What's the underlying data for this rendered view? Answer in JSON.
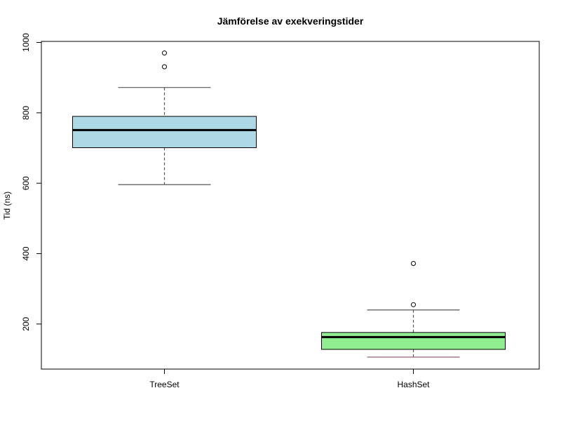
{
  "chart_data": {
    "type": "boxplot",
    "title": "Jämförelse av exekveringstider",
    "xlabel": "",
    "ylabel": "Tid (ns)",
    "ylim": [
      72,
      1003
    ],
    "yticks": [
      200,
      400,
      600,
      800,
      1000
    ],
    "grid": false,
    "categories": [
      "TreeSet",
      "HashSet"
    ],
    "boxes": [
      {
        "category": "TreeSet",
        "whisker_low": 596,
        "q1": 701,
        "median": 751,
        "q3": 790,
        "whisker_high": 872,
        "outliers": [
          931,
          970
        ],
        "fill": "#ADD8E6",
        "whisker_color": "#555555"
      },
      {
        "category": "HashSet",
        "whisker_low": 106,
        "q1": 128,
        "median": 163,
        "q3": 176,
        "whisker_high": 240,
        "outliers": [
          255,
          372
        ],
        "fill": "#90EE90",
        "whisker_color": "#555555",
        "lower_whisker_cap_color": "#8B4C6A"
      }
    ]
  }
}
